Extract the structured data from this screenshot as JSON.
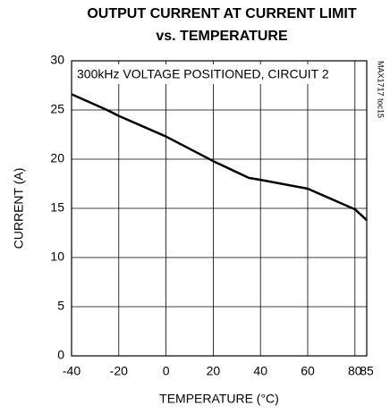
{
  "chart_data": {
    "type": "line",
    "title": [
      "OUTPUT CURRENT AT CURRENT LIMIT",
      "vs. TEMPERATURE"
    ],
    "annotation": "300kHz VOLTAGE POSITIONED, CIRCUIT 2",
    "side_label": "MAX1717 toc15",
    "x_label": "TEMPERATURE (°C)",
    "y_label": "CURRENT (A)",
    "x": [
      -40,
      -25,
      -20,
      0,
      20,
      35,
      40,
      60,
      80,
      85
    ],
    "series": [
      {
        "name": "current",
        "color": "#000000",
        "values": [
          26.6,
          25.0,
          24.4,
          22.3,
          19.8,
          18.1,
          17.9,
          17.0,
          14.9,
          13.8
        ]
      }
    ],
    "xlim": [
      -40,
      85
    ],
    "xticks": [
      -40,
      -20,
      0,
      20,
      40,
      60,
      80,
      85
    ],
    "ylim": [
      0,
      30
    ],
    "yticks": [
      0,
      5,
      10,
      15,
      20,
      25,
      30
    ],
    "grid": true
  }
}
